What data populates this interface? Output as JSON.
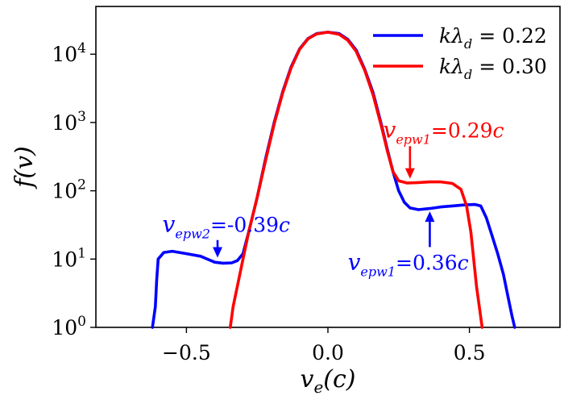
{
  "chart_data": {
    "type": "line",
    "xlabel": "v_e(c)",
    "ylabel": "f(v)",
    "xlim": [
      -0.82,
      0.82
    ],
    "ylim": [
      1,
      50000
    ],
    "yscale": "log",
    "grid": false,
    "legend_position": "top-right",
    "x_ticks": [
      {
        "value": -0.5,
        "label": "−0.5"
      },
      {
        "value": 0.0,
        "label": "0.0"
      },
      {
        "value": 0.5,
        "label": "0.5"
      }
    ],
    "y_ticks": [
      {
        "value": 1,
        "base": "10",
        "exp": "0"
      },
      {
        "value": 10,
        "base": "10",
        "exp": "1"
      },
      {
        "value": 100,
        "base": "10",
        "exp": "2"
      },
      {
        "value": 1000,
        "base": "10",
        "exp": "3"
      },
      {
        "value": 10000,
        "base": "10",
        "exp": "4"
      }
    ],
    "series": [
      {
        "name": "kλd=0.22",
        "legend_value": "0.22",
        "color": "#0000ff",
        "points": [
          [
            -0.62,
            1
          ],
          [
            -0.61,
            2
          ],
          [
            -0.605,
            5
          ],
          [
            -0.6,
            10
          ],
          [
            -0.58,
            12.5
          ],
          [
            -0.55,
            13
          ],
          [
            -0.5,
            12
          ],
          [
            -0.45,
            11
          ],
          [
            -0.4,
            9
          ],
          [
            -0.37,
            8.7
          ],
          [
            -0.34,
            8.8
          ],
          [
            -0.32,
            9.5
          ],
          [
            -0.3,
            12
          ],
          [
            -0.28,
            25
          ],
          [
            -0.25,
            80
          ],
          [
            -0.22,
            300
          ],
          [
            -0.19,
            1000
          ],
          [
            -0.16,
            2800
          ],
          [
            -0.13,
            6500
          ],
          [
            -0.1,
            12000
          ],
          [
            -0.07,
            17000
          ],
          [
            -0.04,
            20000
          ],
          [
            0.0,
            21000
          ],
          [
            0.04,
            20000
          ],
          [
            0.07,
            16500
          ],
          [
            0.1,
            11500
          ],
          [
            0.13,
            6000
          ],
          [
            0.16,
            2700
          ],
          [
            0.19,
            900
          ],
          [
            0.21,
            400
          ],
          [
            0.23,
            190
          ],
          [
            0.25,
            100
          ],
          [
            0.27,
            68
          ],
          [
            0.29,
            56
          ],
          [
            0.32,
            53
          ],
          [
            0.36,
            55
          ],
          [
            0.4,
            58
          ],
          [
            0.44,
            60
          ],
          [
            0.48,
            62
          ],
          [
            0.52,
            63
          ],
          [
            0.54,
            60
          ],
          [
            0.56,
            40
          ],
          [
            0.58,
            22
          ],
          [
            0.6,
            12
          ],
          [
            0.62,
            6
          ],
          [
            0.635,
            3
          ],
          [
            0.65,
            1.5
          ],
          [
            0.66,
            1
          ]
        ]
      },
      {
        "name": "kλd=0.30",
        "legend_value": "0.30",
        "color": "#ff0000",
        "points": [
          [
            -0.345,
            1
          ],
          [
            -0.335,
            2
          ],
          [
            -0.32,
            4
          ],
          [
            -0.3,
            10
          ],
          [
            -0.28,
            25
          ],
          [
            -0.25,
            80
          ],
          [
            -0.22,
            280
          ],
          [
            -0.19,
            950
          ],
          [
            -0.16,
            2700
          ],
          [
            -0.13,
            6300
          ],
          [
            -0.1,
            11800
          ],
          [
            -0.07,
            16800
          ],
          [
            -0.04,
            19800
          ],
          [
            0.0,
            21000
          ],
          [
            0.04,
            19500
          ],
          [
            0.07,
            16000
          ],
          [
            0.1,
            11000
          ],
          [
            0.13,
            5800
          ],
          [
            0.16,
            2500
          ],
          [
            0.19,
            850
          ],
          [
            0.21,
            380
          ],
          [
            0.23,
            190
          ],
          [
            0.25,
            140
          ],
          [
            0.28,
            130
          ],
          [
            0.32,
            132
          ],
          [
            0.36,
            135
          ],
          [
            0.4,
            135
          ],
          [
            0.44,
            128
          ],
          [
            0.47,
            105
          ],
          [
            0.49,
            60
          ],
          [
            0.505,
            25
          ],
          [
            0.515,
            10
          ],
          [
            0.525,
            4
          ],
          [
            0.535,
            2
          ],
          [
            0.545,
            1
          ]
        ]
      }
    ],
    "annotations": [
      {
        "id": "blue-epw2",
        "color": "#0000ff",
        "value_text": "=-0.39",
        "unit": "c",
        "sub": "epw2",
        "arrow_x": -0.39,
        "arrow_from": 19,
        "arrow_to": 10.5,
        "text_x": -0.585,
        "text_y": 25
      },
      {
        "id": "red-epw1",
        "color": "#ff0000",
        "value_text": "=0.29",
        "unit": "c",
        "sub": "epw1",
        "arrow_x": 0.29,
        "arrow_from": 450,
        "arrow_to": 150,
        "text_x": 0.195,
        "text_y": 600
      },
      {
        "id": "blue-epw1",
        "color": "#0000ff",
        "value_text": "=0.36",
        "unit": "c",
        "sub": "epw1",
        "arrow_x": 0.36,
        "arrow_from": 15,
        "arrow_to": 50,
        "text_x": 0.07,
        "text_y": 7
      }
    ]
  }
}
